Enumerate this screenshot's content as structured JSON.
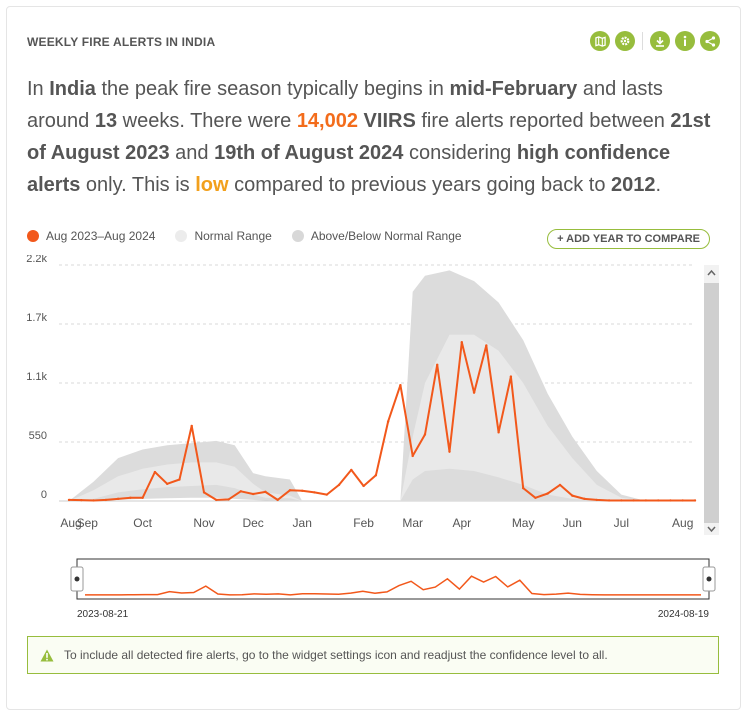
{
  "widget": {
    "title": "WEEKLY FIRE ALERTS IN INDIA",
    "icons": [
      "map-icon",
      "gear-icon",
      "download-icon",
      "info-icon",
      "share-icon"
    ],
    "accent": "#97bd3d"
  },
  "summary": {
    "t1": "In ",
    "country": "India",
    "t2": " the peak fire season typically begins in ",
    "peak_start": "mid-February",
    "t3": " and lasts around ",
    "weeks": "13",
    "t4": " weeks. There were ",
    "alerts": "14,002",
    "t5": " ",
    "sensor": "VIIRS",
    "t6": " fire alerts reported between ",
    "start_date": "21st of August 2023",
    "t7": " and ",
    "end_date": "19th of August 2024",
    "t8": " considering ",
    "confidence": "high confidence alerts",
    "t9": " only. This is ",
    "status": "low",
    "t10": " compared to previous years going back to ",
    "base_year": "2012",
    "t11": "."
  },
  "legend": {
    "series": "Aug 2023–Aug 2024",
    "normal": "Normal Range",
    "above_below": "Above/Below Normal Range",
    "add_year": "+ ADD YEAR TO COMPARE"
  },
  "colors": {
    "series": "#f2581b",
    "normal": "#e9e9e9",
    "above_below": "#dcdcdc",
    "accent": "#97bd3d"
  },
  "notice": {
    "text": "To include all detected fire alerts, go to the widget settings icon and readjust the confidence level to all."
  },
  "chart_data": {
    "type": "line",
    "y_ticks": [
      "2.2k",
      "1.7k",
      "1.1k",
      "550",
      "0"
    ],
    "y_tick_values": [
      2200,
      1650,
      1100,
      550,
      0
    ],
    "ylim": [
      0,
      2200
    ],
    "x_tick_labels": [
      "Aug",
      "Sep",
      "Oct",
      "Nov",
      "Dec",
      "Jan",
      "Feb",
      "Mar",
      "Apr",
      "May",
      "Jun",
      "Jul",
      "Aug"
    ],
    "x_tick_weeks": [
      0,
      1,
      6,
      11,
      15,
      19,
      24,
      28,
      32,
      37,
      41,
      45,
      50
    ],
    "series": [
      {
        "name": "Aug 2023–Aug 2024",
        "values": [
          10,
          8,
          5,
          10,
          20,
          30,
          30,
          270,
          160,
          200,
          700,
          80,
          10,
          15,
          90,
          65,
          85,
          10,
          100,
          95,
          80,
          60,
          150,
          290,
          140,
          240,
          740,
          1080,
          420,
          620,
          1270,
          460,
          1480,
          1010,
          1450,
          640,
          1160,
          120,
          30,
          70,
          150,
          50,
          20,
          10,
          5,
          5,
          5,
          5,
          5,
          5,
          5,
          5
        ]
      }
    ],
    "normal_range": {
      "weeks": [
        0,
        2,
        4,
        6,
        8,
        10,
        12,
        13.5,
        15,
        16,
        18,
        19,
        20,
        27,
        28,
        29,
        31,
        33,
        35,
        37,
        39,
        41,
        43,
        45,
        47,
        51
      ],
      "low": [
        0,
        20,
        80,
        110,
        130,
        140,
        150,
        120,
        60,
        30,
        25,
        0,
        0,
        0,
        200,
        280,
        300,
        280,
        220,
        150,
        60,
        20,
        5,
        0,
        0,
        0
      ],
      "high": [
        0,
        100,
        230,
        300,
        340,
        360,
        360,
        320,
        160,
        80,
        50,
        0,
        0,
        0,
        600,
        1100,
        1550,
        1550,
        1400,
        1100,
        700,
        400,
        150,
        30,
        0,
        0
      ]
    },
    "above_below_range": {
      "weeks": [
        0,
        2,
        4,
        6,
        8,
        10,
        12,
        13.5,
        15,
        16,
        18,
        19,
        20,
        27,
        28,
        29,
        31,
        33,
        35,
        37,
        39,
        41,
        43,
        45,
        47,
        51
      ],
      "low": [
        0,
        0,
        10,
        20,
        25,
        30,
        30,
        20,
        10,
        5,
        0,
        0,
        0,
        0,
        0,
        0,
        0,
        0,
        0,
        0,
        0,
        0,
        0,
        0,
        0,
        0
      ],
      "high": [
        0,
        180,
        400,
        480,
        520,
        540,
        560,
        520,
        260,
        230,
        200,
        0,
        0,
        0,
        1950,
        2100,
        2150,
        2050,
        1850,
        1500,
        1000,
        600,
        280,
        60,
        0,
        0
      ]
    },
    "grid": true,
    "navigator": {
      "start_label": "2023-08-21",
      "end_label": "2024-08-19"
    }
  }
}
